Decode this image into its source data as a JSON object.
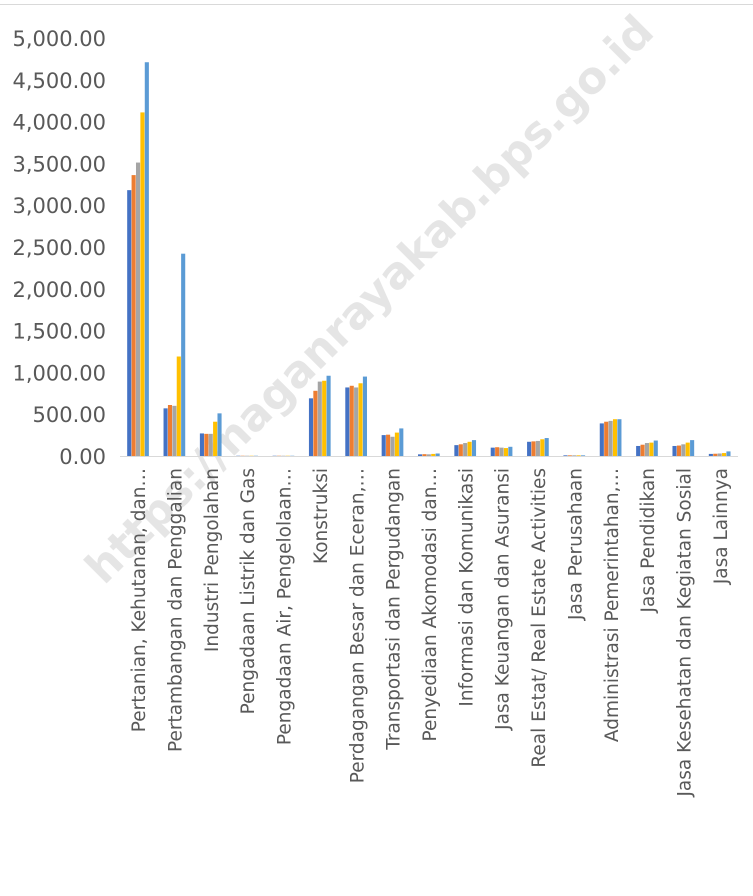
{
  "watermark": "https://naganrayakab.bps.go.id",
  "colors": {
    "series": [
      "#4472C4",
      "#ED7D31",
      "#A5A5A5",
      "#FFC000",
      "#5B9BD5"
    ],
    "axis_text": "#595959",
    "axis_line": "#d9d9d9",
    "watermark": "#d0d0d0"
  },
  "chart_data": {
    "type": "bar",
    "title": "",
    "xlabel": "",
    "ylabel": "",
    "ylim": [
      0,
      5000
    ],
    "yticks": [
      "0.00",
      "500.00",
      "1,000.00",
      "1,500.00",
      "2,000.00",
      "2,500.00",
      "3,000.00",
      "3,500.00",
      "4,000.00",
      "4,500.00",
      "5,000.00"
    ],
    "grid": false,
    "legend": "none",
    "categories": [
      "Pertanian, Kehutanan, dan…",
      "Pertambangan dan Penggalian",
      "Industri Pengolahan",
      "Pengadaan Listrik dan Gas",
      "Pengadaan Air, Pengelolaan…",
      "Konstruksi",
      "Perdagangan Besar dan Eceran,…",
      "Transportasi dan Pergudangan",
      "Penyediaan Akomodasi dan…",
      "Informasi dan Komunikasi",
      "Jasa Keuangan dan Asuransi",
      "Real Estat/ Real Estate Activities",
      "Jasa Perusahaan",
      "Administrasi Pemerintahan,…",
      "Jasa Pendidikan",
      "Jasa Kesehatan dan Kegiatan Sosial",
      "Jasa Lainnya"
    ],
    "series": [
      {
        "values": [
          3180,
          570,
          270,
          3,
          3,
          690,
          820,
          250,
          20,
          130,
          100,
          170,
          8,
          390,
          120,
          120,
          25
        ]
      },
      {
        "values": [
          3360,
          610,
          265,
          3,
          3,
          780,
          840,
          255,
          22,
          140,
          105,
          175,
          8,
          410,
          135,
          125,
          27
        ]
      },
      {
        "values": [
          3510,
          600,
          265,
          3,
          3,
          890,
          820,
          230,
          20,
          155,
          100,
          180,
          8,
          420,
          155,
          140,
          30
        ]
      },
      {
        "values": [
          4110,
          1190,
          410,
          3,
          3,
          900,
          870,
          280,
          25,
          170,
          95,
          200,
          8,
          440,
          160,
          160,
          35
        ]
      },
      {
        "values": [
          4710,
          2420,
          510,
          3,
          3,
          960,
          950,
          330,
          30,
          190,
          110,
          215,
          8,
          440,
          185,
          190,
          55
        ]
      }
    ]
  }
}
